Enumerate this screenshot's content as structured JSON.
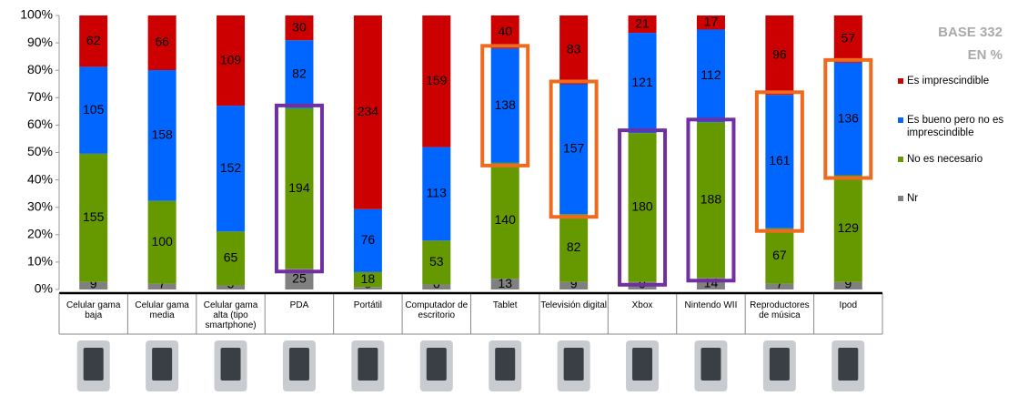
{
  "chart_data": {
    "type": "bar",
    "stacked": "percent",
    "categories": [
      "Celular gama baja",
      "Celular gama media",
      "Celular gama alta (tipo smartphone)",
      "PDA",
      "Portátil",
      "Computador de escritorio",
      "Tablet",
      "Televisión digital",
      "Xbox",
      "Nintendo WII",
      "Reproductores de música",
      "Ipod"
    ],
    "series": [
      {
        "name": "Nr",
        "color": "#808080",
        "values": [
          9,
          7,
          5,
          25,
          3,
          6,
          13,
          9,
          9,
          14,
          7,
          9
        ]
      },
      {
        "name": "No es necesario",
        "color": "#669900",
        "values": [
          155,
          100,
          65,
          194,
          18,
          53,
          140,
          82,
          180,
          188,
          67,
          129
        ]
      },
      {
        "name": "Es bueno pero no es imprescindible",
        "color": "#0066ff",
        "values": [
          105,
          158,
          152,
          82,
          76,
          113,
          138,
          157,
          121,
          112,
          161,
          136
        ]
      },
      {
        "name": "Es imprescindible",
        "color": "#cc0000",
        "values": [
          62,
          66,
          109,
          30,
          234,
          159,
          40,
          83,
          21,
          17,
          96,
          57
        ]
      }
    ],
    "ylim": [
      0,
      100
    ],
    "yticks": [
      {
        "value": 0,
        "label": "0%"
      },
      {
        "value": 10,
        "label": "10%"
      },
      {
        "value": 20,
        "label": "20%"
      },
      {
        "value": 30,
        "label": "30%"
      },
      {
        "value": 40,
        "label": "40%"
      },
      {
        "value": 50,
        "label": "50%"
      },
      {
        "value": 60,
        "label": "60%"
      },
      {
        "value": 70,
        "label": "70%"
      },
      {
        "value": 80,
        "label": "80%"
      },
      {
        "value": 90,
        "label": "90%"
      },
      {
        "value": 100,
        "label": "100%"
      }
    ],
    "annotations": [
      "BASE 332",
      "EN %"
    ]
  }
}
